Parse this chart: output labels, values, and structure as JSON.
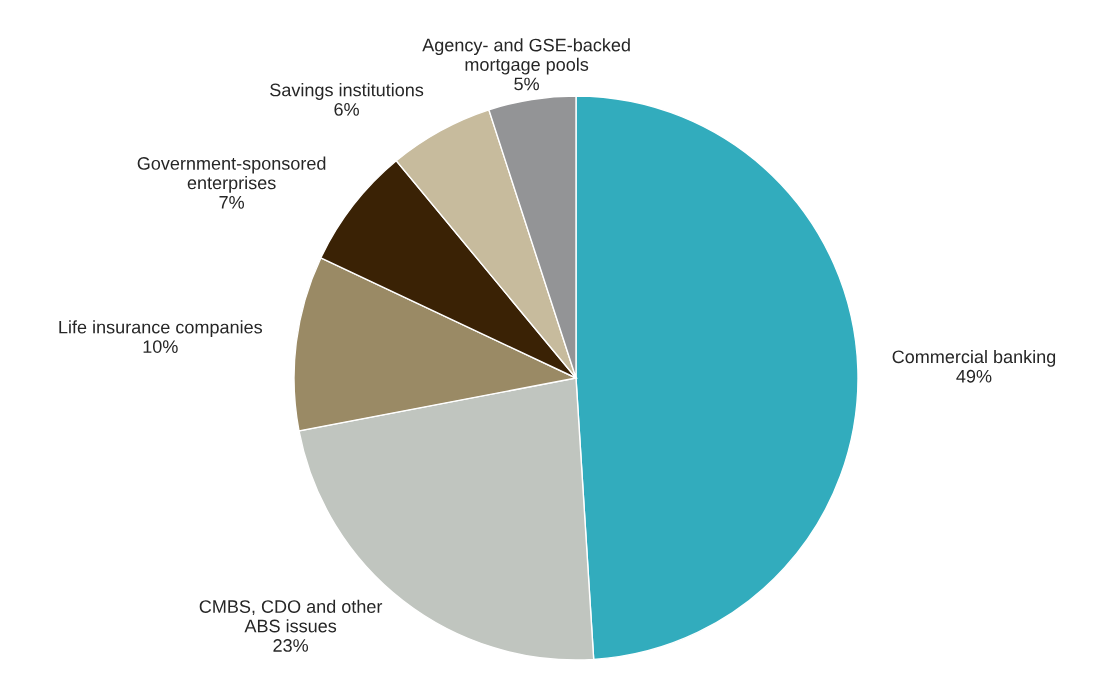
{
  "chart_data": {
    "type": "pie",
    "categories": [
      "Commercial banking",
      "CMBS, CDO and other\nABS issues",
      "Life insurance companies",
      "Government-sponsored\nenterprises",
      "Savings institutions",
      "Agency- and GSE-backed\nmortgage pools"
    ],
    "values": [
      49,
      23,
      10,
      7,
      6,
      5
    ],
    "colors": [
      "#32acbd",
      "#c0c5bf",
      "#9a8a65",
      "#3a2205",
      "#c7bb9d",
      "#939496"
    ],
    "value_labels": [
      "49%",
      "23%",
      "10%",
      "7%",
      "6%",
      "5%"
    ]
  }
}
